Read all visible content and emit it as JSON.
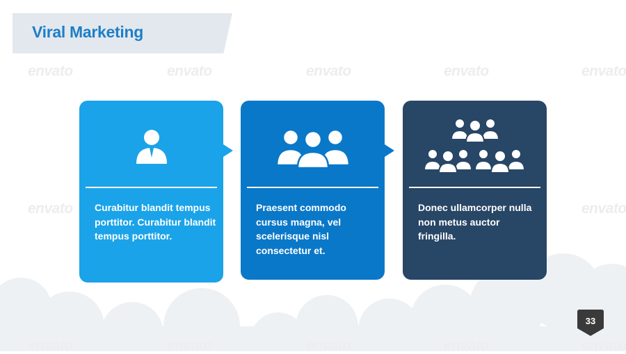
{
  "slide": {
    "title": "Viral Marketing",
    "page_number": "33",
    "watermark": "envato"
  },
  "cards": [
    {
      "text": "Curabitur blandit tempus porttitor. Curabitur blandit tempus porttitor.",
      "color": "#1aa3e8",
      "icon": "single-person-icon"
    },
    {
      "text": "Praesent commodo cursus magna, vel scelerisque nisl consectetur et.",
      "color": "#0a78c8",
      "icon": "three-people-icon"
    },
    {
      "text": "Donec ullamcorper nulla non metus auctor fringilla.",
      "color": "#284666",
      "icon": "crowd-icon"
    }
  ],
  "colors": {
    "title": "#1d7fc7",
    "banner": "#e3e8ee",
    "clouds": "#eef0f2",
    "badge": "#3a3a3a"
  }
}
